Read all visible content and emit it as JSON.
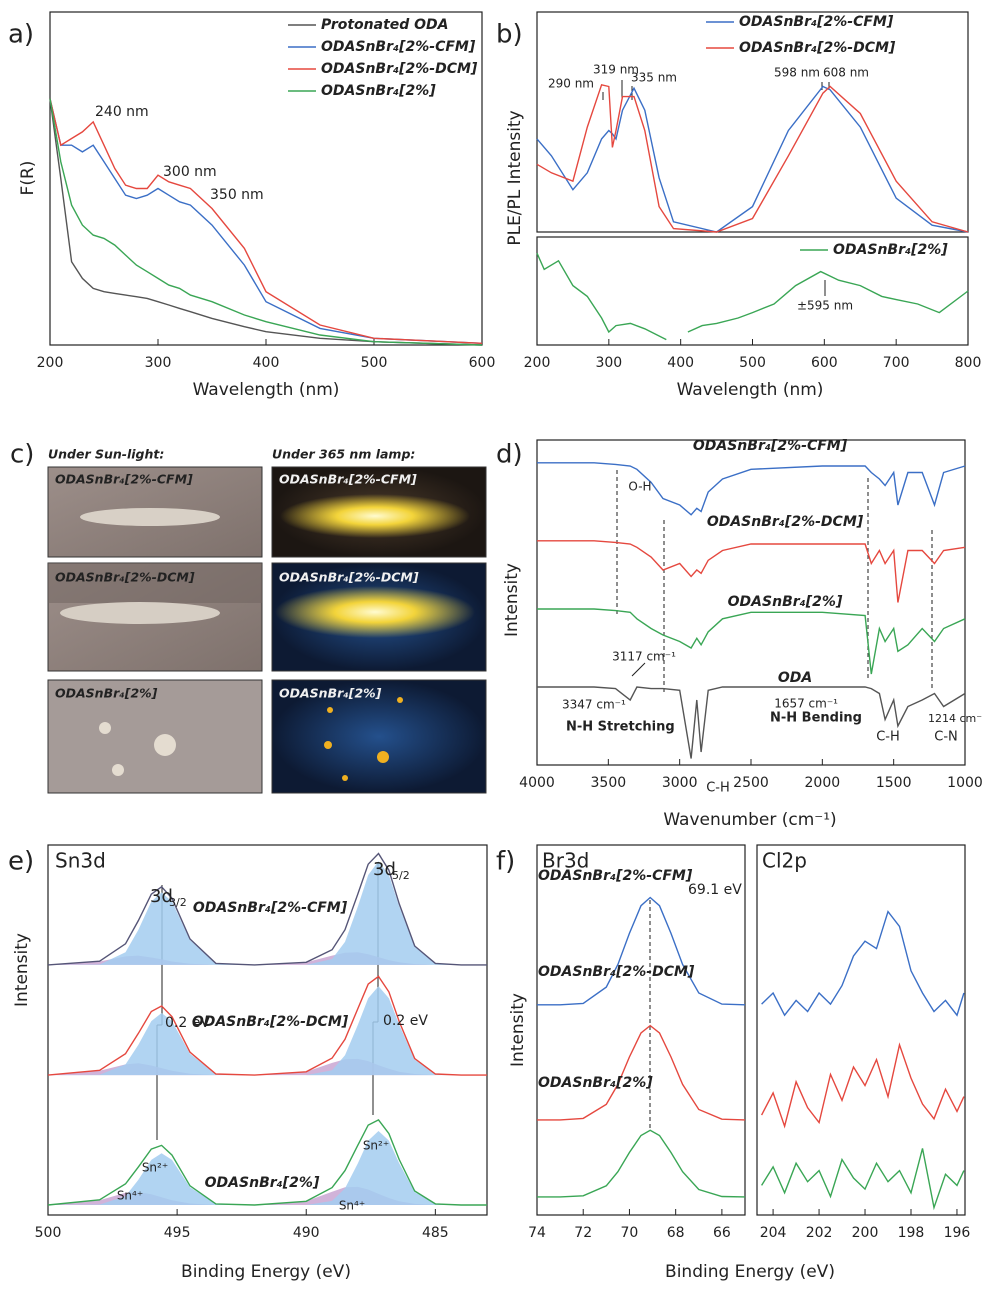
{
  "chart_data": [
    {
      "type": "line",
      "panel_label": "a)",
      "xlabel": "Wavelength (nm)",
      "ylabel": "F(R)",
      "legend": "upper right",
      "xlim": [
        200,
        600
      ],
      "xticks": [
        200,
        300,
        400,
        500,
        600
      ],
      "ylim": [
        0,
        1
      ],
      "x": [
        200,
        210,
        220,
        230,
        240,
        250,
        260,
        270,
        280,
        290,
        300,
        310,
        320,
        330,
        350,
        380,
        400,
        450,
        500,
        600
      ],
      "series": [
        {
          "name": "Protonated ODA",
          "color": "#555555",
          "values": [
            0.74,
            0.5,
            0.25,
            0.2,
            0.17,
            0.16,
            0.155,
            0.15,
            0.145,
            0.14,
            0.13,
            0.12,
            0.11,
            0.1,
            0.08,
            0.055,
            0.04,
            0.02,
            0.01,
            0
          ]
        },
        {
          "name": "ODASnBr₄[2%-CFM]",
          "color": "#3b6fc6",
          "values": [
            0.74,
            0.6,
            0.6,
            0.58,
            0.6,
            0.55,
            0.5,
            0.45,
            0.44,
            0.45,
            0.47,
            0.45,
            0.43,
            0.42,
            0.36,
            0.24,
            0.13,
            0.05,
            0.02,
            0.005
          ]
        },
        {
          "name": "ODASnBr₄[2%-DCM]",
          "color": "#e5483f",
          "values": [
            0.74,
            0.6,
            0.62,
            0.64,
            0.67,
            0.6,
            0.53,
            0.48,
            0.47,
            0.47,
            0.51,
            0.49,
            0.48,
            0.47,
            0.41,
            0.29,
            0.16,
            0.06,
            0.02,
            0.005
          ]
        },
        {
          "name": "ODASnBr₄[2%]",
          "color": "#3aa655",
          "values": [
            0.74,
            0.55,
            0.42,
            0.36,
            0.33,
            0.32,
            0.3,
            0.27,
            0.24,
            0.22,
            0.2,
            0.18,
            0.17,
            0.15,
            0.13,
            0.09,
            0.07,
            0.03,
            0.01,
            0
          ]
        }
      ],
      "annotations": [
        "240 nm",
        "300 nm",
        "350 nm"
      ]
    },
    {
      "type": "line",
      "panel_label": "b)",
      "ylabel": "PLE/PL Intensity",
      "legend": "upper right",
      "xlim": [
        200,
        800
      ],
      "ylim": [
        0,
        1.3
      ],
      "x": [
        200,
        220,
        250,
        270,
        290,
        300,
        305,
        310,
        319,
        335,
        350,
        370,
        390,
        450,
        500,
        550,
        598,
        608,
        650,
        700,
        750,
        800
      ],
      "series": [
        {
          "name": "ODASnBr₄[2%-CFM]",
          "color": "#3b6fc6",
          "values": [
            0.55,
            0.45,
            0.25,
            0.35,
            0.55,
            0.6,
            0.58,
            0.55,
            0.72,
            0.85,
            0.72,
            0.32,
            0.06,
            0,
            0.15,
            0.6,
            0.86,
            0.84,
            0.62,
            0.2,
            0.04,
            0
          ]
        },
        {
          "name": "ODASnBr₄[2%-DCM]",
          "color": "#e5483f",
          "values": [
            0.4,
            0.35,
            0.3,
            0.62,
            0.87,
            0.86,
            0.5,
            0.6,
            0.8,
            0.8,
            0.6,
            0.15,
            0.02,
            0,
            0.08,
            0.45,
            0.82,
            0.86,
            0.7,
            0.3,
            0.06,
            0
          ]
        }
      ],
      "annotations": [
        "290 nm",
        "319 nm",
        "335 nm",
        "598 nm",
        "608 nm"
      ]
    },
    {
      "type": "line",
      "xlabel": "Wavelength (nm)",
      "legend": "upper right",
      "xlim": [
        200,
        800
      ],
      "xticks": [
        200,
        300,
        400,
        500,
        600,
        700,
        800
      ],
      "ylim": [
        0,
        1
      ],
      "x": [
        200,
        210,
        230,
        250,
        270,
        290,
        300,
        310,
        330,
        350,
        380,
        400,
        410,
        430,
        450,
        480,
        500,
        530,
        560,
        595,
        620,
        650,
        680,
        700,
        730,
        760,
        800
      ],
      "series": [
        {
          "name": "ODASnBr₄[2%]",
          "color": "#3aa655",
          "values": [
            0.85,
            0.7,
            0.78,
            0.55,
            0.45,
            0.25,
            0.12,
            0.18,
            0.2,
            0.15,
            0.05,
            null,
            0.12,
            0.18,
            0.2,
            0.25,
            0.3,
            0.38,
            0.55,
            0.68,
            0.6,
            0.55,
            0.45,
            0.42,
            0.38,
            0.3,
            0.5
          ]
        }
      ],
      "annotations": [
        "±595 nm"
      ]
    },
    {
      "type": "line",
      "panel_label": "d)",
      "xlabel": "Wavenumber (cm⁻¹)",
      "ylabel": "Intensity",
      "xlim": [
        4000,
        1000
      ],
      "xticks": [
        4000,
        3500,
        3000,
        2500,
        2000,
        1500,
        1000
      ],
      "ylim": [
        0,
        1
      ],
      "x": [
        4000,
        3600,
        3450,
        3347,
        3300,
        3200,
        3117,
        3000,
        2920,
        2880,
        2850,
        2800,
        2700,
        2500,
        2000,
        1700,
        1657,
        1600,
        1560,
        1500,
        1470,
        1400,
        1300,
        1214,
        1150,
        1000
      ],
      "series": [
        {
          "name": "ODASnBr₄[2%-CFM]",
          "color": "#3b6fc6",
          "values": [
            0.93,
            0.93,
            0.925,
            0.92,
            0.91,
            0.87,
            0.82,
            0.8,
            0.77,
            0.79,
            0.78,
            0.84,
            0.88,
            0.91,
            0.92,
            0.92,
            0.9,
            0.88,
            0.86,
            0.9,
            0.8,
            0.9,
            0.9,
            0.8,
            0.9,
            0.92
          ]
        },
        {
          "name": "ODASnBr₄[2%-DCM]",
          "color": "#e5483f",
          "values": [
            0.69,
            0.69,
            0.685,
            0.68,
            0.67,
            0.64,
            0.6,
            0.62,
            0.58,
            0.6,
            0.59,
            0.63,
            0.66,
            0.68,
            0.68,
            0.68,
            0.62,
            0.66,
            0.62,
            0.66,
            0.5,
            0.66,
            0.66,
            0.62,
            0.66,
            0.67
          ]
        },
        {
          "name": "ODASnBr₄[2%]",
          "color": "#3aa655",
          "values": [
            0.48,
            0.48,
            0.475,
            0.47,
            0.45,
            0.42,
            0.4,
            0.38,
            0.36,
            0.39,
            0.37,
            0.41,
            0.45,
            0.47,
            0.47,
            0.46,
            0.28,
            0.42,
            0.38,
            0.42,
            0.35,
            0.37,
            0.42,
            0.38,
            0.42,
            0.45
          ]
        },
        {
          "name": "ODA",
          "color": "#555555",
          "values": [
            0.24,
            0.24,
            0.235,
            0.2,
            0.24,
            0.235,
            0.235,
            0.23,
            0.02,
            0.2,
            0.04,
            0.23,
            0.24,
            0.24,
            0.24,
            0.24,
            0.235,
            0.22,
            0.14,
            0.2,
            0.12,
            0.18,
            0.2,
            0.22,
            0.18,
            0.22
          ]
        }
      ],
      "annotations": [
        "O-H",
        "3117 cm⁻¹",
        "3347 cm⁻¹",
        "N-H Stretching",
        "C-H",
        "1657 cm⁻¹",
        "N-H Bending",
        "C-H",
        "1214 cm⁻¹",
        "C-N"
      ]
    },
    {
      "type": "line",
      "panel_label": "e)",
      "title": "Sn3d",
      "xlabel": "Binding Energy (eV)",
      "ylabel": "Intensity",
      "xlim": [
        500,
        483
      ],
      "xticks": [
        500,
        495,
        490,
        485
      ],
      "ylim": [
        0,
        1
      ],
      "x": [
        500,
        498,
        497,
        496.5,
        496,
        495.6,
        495.2,
        494.5,
        493.5,
        492,
        490,
        489,
        488.5,
        488,
        487.6,
        487.2,
        486.8,
        486.4,
        485.8,
        485,
        484,
        483
      ],
      "series": [
        {
          "fill": true,
          "color": "#c9a6d2",
          "values": [
            0.676,
            0.685,
            0.699,
            0.701,
            0.696,
            0.691,
            0.685,
            0.679,
            0.676,
            0.676,
            0.683,
            0.701,
            0.709,
            0.71,
            0.705,
            0.697,
            0.689,
            0.683,
            0.678,
            0.676,
            0.676,
            0.676
          ]
        },
        {
          "fill": true,
          "color": "#a3cdf0",
          "values": [
            0.676,
            0.677,
            0.71,
            0.771,
            0.847,
            0.872,
            0.847,
            0.743,
            0.68,
            0.676,
            0.676,
            0.692,
            0.738,
            0.834,
            0.919,
            0.956,
            0.919,
            0.834,
            0.725,
            0.68,
            0.676,
            0.676
          ]
        },
        {
          "name": "ODASnBr₄[2%-CFM]",
          "color": "#555577",
          "values": [
            0.676,
            0.686,
            0.733,
            0.796,
            0.867,
            0.887,
            0.856,
            0.746,
            0.68,
            0.676,
            0.683,
            0.717,
            0.771,
            0.868,
            0.948,
            0.977,
            0.932,
            0.841,
            0.727,
            0.68,
            0.676,
            0.676
          ]
        },
        {
          "fill": true,
          "color": "#c9a6d2",
          "values": [
            0.378,
            0.39,
            0.407,
            0.41,
            0.404,
            0.397,
            0.39,
            0.382,
            0.378,
            0.378,
            0.387,
            0.411,
            0.421,
            0.422,
            0.416,
            0.405,
            0.395,
            0.387,
            0.381,
            0.378,
            0.378,
            0.378
          ]
        },
        {
          "fill": true,
          "color": "#a3cdf0",
          "values": [
            0.378,
            0.379,
            0.407,
            0.46,
            0.524,
            0.546,
            0.524,
            0.436,
            0.381,
            0.378,
            0.378,
            0.391,
            0.432,
            0.514,
            0.586,
            0.618,
            0.586,
            0.514,
            0.42,
            0.381,
            0.378,
            0.378
          ]
        },
        {
          "name": "ODASnBr₄[2%-DCM]",
          "color": "#e5483f",
          "values": [
            0.378,
            0.391,
            0.436,
            0.491,
            0.55,
            0.565,
            0.536,
            0.44,
            0.381,
            0.378,
            0.387,
            0.424,
            0.475,
            0.558,
            0.624,
            0.645,
            0.603,
            0.523,
            0.423,
            0.381,
            0.378,
            0.378
          ]
        },
        {
          "name": "Sn⁴⁺",
          "fill": true,
          "color": "#c9a6d2",
          "values": [
            0.027,
            0.04,
            0.06,
            0.062,
            0.056,
            0.048,
            0.04,
            0.031,
            0.027,
            0.027,
            0.037,
            0.063,
            0.075,
            0.076,
            0.069,
            0.057,
            0.046,
            0.037,
            0.03,
            0.027,
            0.027,
            0.027
          ]
        },
        {
          "name": "Sn²⁺",
          "fill": true,
          "color": "#a3cdf0",
          "values": [
            0.027,
            0.028,
            0.051,
            0.095,
            0.149,
            0.167,
            0.149,
            0.075,
            0.03,
            0.027,
            0.027,
            0.038,
            0.072,
            0.14,
            0.201,
            0.227,
            0.201,
            0.14,
            0.062,
            0.03,
            0.027,
            0.027
          ]
        },
        {
          "name": "ODASnBr₄[2%]",
          "color": "#3aa655",
          "values": [
            0.027,
            0.041,
            0.084,
            0.13,
            0.178,
            0.188,
            0.162,
            0.079,
            0.03,
            0.027,
            0.037,
            0.074,
            0.12,
            0.189,
            0.243,
            0.257,
            0.22,
            0.15,
            0.065,
            0.03,
            0.027,
            0.027
          ]
        }
      ],
      "annotations": [
        "3d",
        "3/2",
        "3d",
        "5/2",
        "0.2 eV",
        "0.2 eV"
      ]
    },
    {
      "type": "line",
      "panel_label": "f)",
      "title": "Br3d",
      "xlabel": "Binding Energy (eV)",
      "ylabel": "Intensity",
      "xlim": [
        74,
        65
      ],
      "xticks": [
        74,
        72,
        70,
        68,
        66
      ],
      "ylim": [
        0,
        1
      ],
      "x": [
        74,
        73,
        72,
        71,
        70.5,
        70,
        69.5,
        69.1,
        68.7,
        68.2,
        67.7,
        67,
        66,
        65
      ],
      "series": [
        {
          "name": "ODASnBr₄[2%-CFM]",
          "color": "#3b6fc6",
          "values": [
            0.568,
            0.568,
            0.572,
            0.616,
            0.677,
            0.761,
            0.836,
            0.858,
            0.836,
            0.761,
            0.677,
            0.6,
            0.57,
            0.568
          ]
        },
        {
          "name": "ODASnBr₄[2%-DCM]",
          "color": "#e5483f",
          "values": [
            0.257,
            0.257,
            0.261,
            0.299,
            0.353,
            0.427,
            0.492,
            0.512,
            0.492,
            0.427,
            0.353,
            0.285,
            0.259,
            0.257
          ]
        },
        {
          "name": "ODASnBr₄[2%]",
          "color": "#3aa655",
          "values": [
            0.049,
            0.049,
            0.052,
            0.079,
            0.117,
            0.169,
            0.215,
            0.229,
            0.215,
            0.169,
            0.117,
            0.069,
            0.05,
            0.049
          ]
        }
      ],
      "annotations": [
        "69.1 eV"
      ]
    },
    {
      "type": "line",
      "title": "Cl2p",
      "xlim": [
        204.7,
        195.65
      ],
      "xticks": [
        204,
        202,
        200,
        198,
        196
      ],
      "ylim": [
        0,
        1
      ],
      "x": [
        204.5,
        204,
        203.5,
        203,
        202.5,
        202,
        201.5,
        201,
        200.5,
        200,
        199.5,
        199,
        198.5,
        198,
        197.5,
        197,
        196.5,
        196,
        195.7
      ],
      "series": [
        {
          "color": "#3b6fc6",
          "values": [
            0.57,
            0.6,
            0.54,
            0.58,
            0.55,
            0.6,
            0.57,
            0.62,
            0.7,
            0.74,
            0.72,
            0.82,
            0.78,
            0.66,
            0.6,
            0.55,
            0.58,
            0.54,
            0.6
          ]
        },
        {
          "color": "#e5483f",
          "values": [
            0.27,
            0.33,
            0.24,
            0.36,
            0.29,
            0.25,
            0.38,
            0.31,
            0.4,
            0.35,
            0.42,
            0.32,
            0.46,
            0.37,
            0.3,
            0.26,
            0.34,
            0.28,
            0.32
          ]
        },
        {
          "color": "#3aa655",
          "values": [
            0.08,
            0.13,
            0.06,
            0.14,
            0.09,
            0.12,
            0.05,
            0.15,
            0.1,
            0.07,
            0.14,
            0.09,
            0.12,
            0.06,
            0.18,
            0.02,
            0.11,
            0.08,
            0.12
          ]
        }
      ]
    }
  ],
  "photos": {
    "panel_label": "c)",
    "headers": [
      "Under Sun-light:",
      "Under 365 nm lamp:"
    ],
    "captions": [
      [
        "ODASnBr₄[2%-CFM]",
        "ODASnBr₄[2%-CFM]"
      ],
      [
        "ODASnBr₄[2%-DCM]",
        "ODASnBr₄[2%-DCM]"
      ],
      [
        "ODASnBr₄[2%]",
        "ODASnBr₄[2%]"
      ]
    ]
  }
}
